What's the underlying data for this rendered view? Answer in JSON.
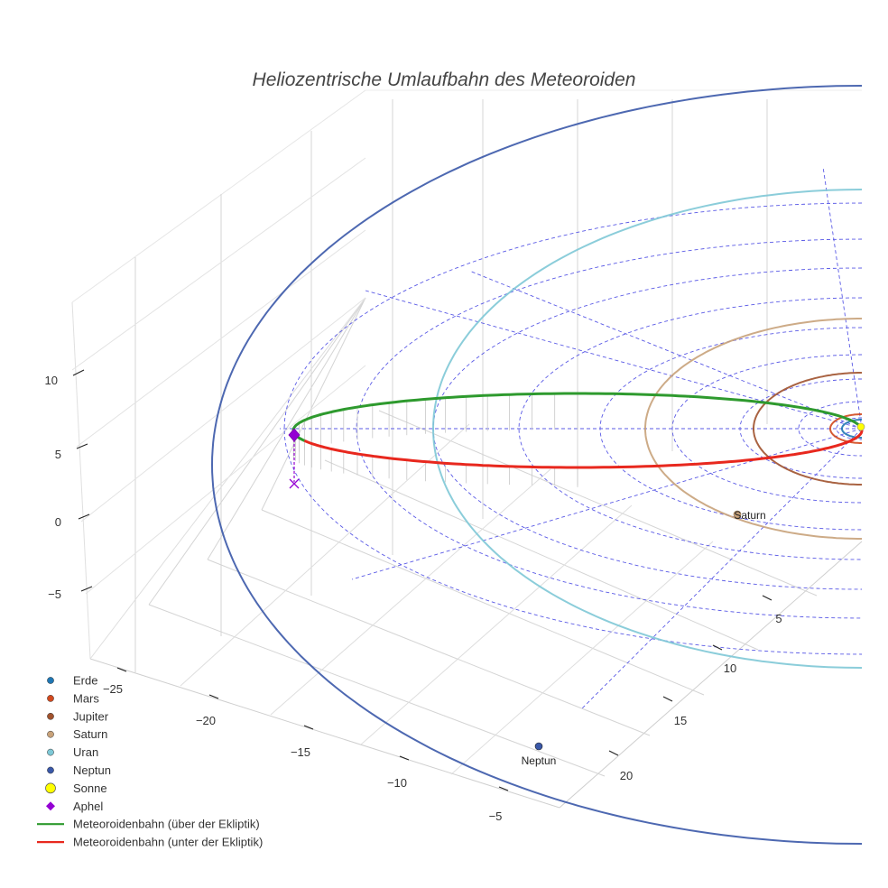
{
  "chart_data": {
    "type": "line",
    "title": "Heliozentrische Umlaufbahn des Meteoroiden",
    "projection": "3d",
    "axes": {
      "x": {
        "ticks": [
          -25,
          -20,
          -15,
          -10,
          -5
        ]
      },
      "y": {
        "ticks": [
          5,
          10,
          15,
          20
        ]
      },
      "z": {
        "ticks": [
          -5,
          0,
          5,
          10
        ]
      }
    },
    "series": [
      {
        "name": "Erde",
        "kind": "marker",
        "color": "#1f77b4"
      },
      {
        "name": "Mars",
        "kind": "marker",
        "color": "#d2491e"
      },
      {
        "name": "Jupiter",
        "kind": "marker",
        "color": "#a0522d"
      },
      {
        "name": "Saturn",
        "kind": "marker",
        "color": "#c8a27a",
        "label": "Saturn"
      },
      {
        "name": "Uran",
        "kind": "marker",
        "color": "#7ec8d6"
      },
      {
        "name": "Neptun",
        "kind": "marker",
        "color": "#3a58a8",
        "label": "Neptun"
      },
      {
        "name": "Sonne",
        "kind": "marker",
        "color": "#ffff00"
      },
      {
        "name": "Aphel",
        "kind": "marker",
        "color": "#9400d3"
      },
      {
        "name": "Meteoroidenbahn (über der Ekliptik)",
        "kind": "line",
        "color": "#2e9a2e"
      },
      {
        "name": "Meteoroidenbahn (unter der Ekliptik)",
        "kind": "line",
        "color": "#e8281e"
      }
    ],
    "grid": true,
    "legend_position": "bottom-left"
  }
}
